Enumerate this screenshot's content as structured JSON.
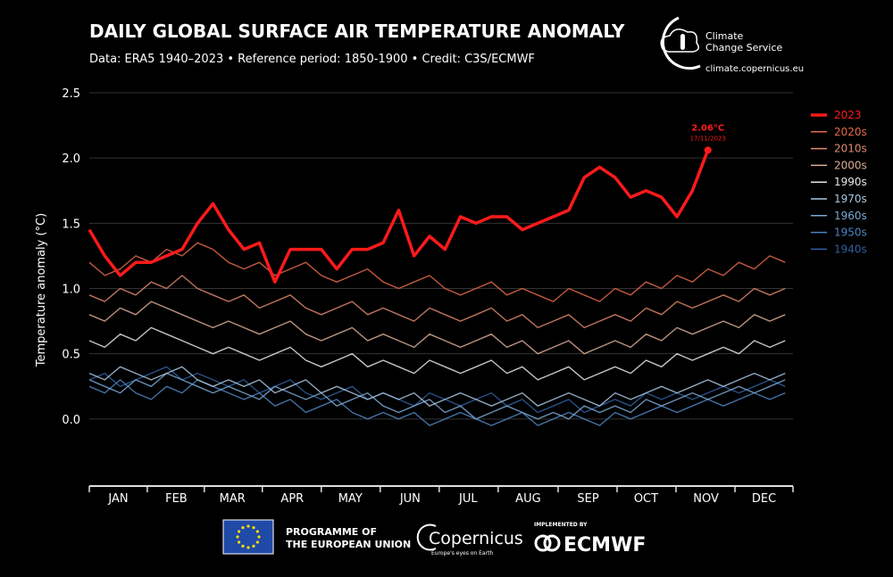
{
  "header": {
    "title": "DAILY GLOBAL SURFACE AIR TEMPERATURE ANOMALY",
    "subtitle": "Data: ERA5 1940–2023 • Reference period: 1850-1900 • Credit: C3S/ECMWF",
    "logo_line1": "Climate",
    "logo_line2": "Change Service",
    "url": "climate.copernicus.eu"
  },
  "footer": {
    "eu_line1": "PROGRAMME OF",
    "eu_line2": "THE EUROPEAN UNION",
    "copernicus": "Copernicus",
    "copernicus_tagline": "Europe's eyes on Earth",
    "implemented_by": "IMPLEMENTED BY",
    "ecmwf": "ECMWF"
  },
  "chart_data": {
    "type": "line",
    "y_label": "Temperature anomaly (°C)",
    "ylim": [
      -0.5,
      2.5
    ],
    "yticks": [
      2.5,
      {
        "value": 2,
        "label": "2.0"
      },
      1.5,
      {
        "value": 1,
        "label": "1.0"
      },
      0.5,
      {
        "value": 0,
        "label": "0.0"
      }
    ],
    "grid": true,
    "xlim": [
      1,
      365
    ],
    "xticks": [
      {
        "value": 16,
        "label": "JAN"
      },
      {
        "value": 46,
        "label": "FEB"
      },
      {
        "value": 75,
        "label": "MAR"
      },
      {
        "value": 106,
        "label": "APR"
      },
      {
        "value": 136,
        "label": "MAY"
      },
      {
        "value": 167,
        "label": "JUN"
      },
      {
        "value": 197,
        "label": "JUL"
      },
      {
        "value": 228,
        "label": "AUG"
      },
      {
        "value": 259,
        "label": "SEP"
      },
      {
        "value": 289,
        "label": "OCT"
      },
      {
        "value": 320,
        "label": "NOV"
      },
      {
        "value": 350,
        "label": "DEC"
      }
    ],
    "x": [
      1,
      9,
      17,
      25,
      33,
      41,
      49,
      57,
      65,
      73,
      81,
      89,
      97,
      105,
      113,
      121,
      129,
      137,
      145,
      153,
      161,
      169,
      177,
      185,
      193,
      201,
      209,
      217,
      225,
      233,
      241,
      249,
      257,
      265,
      273,
      281,
      289,
      297,
      305,
      313,
      321,
      329,
      337,
      345,
      353,
      361
    ],
    "legend": "right",
    "date_label": "17/11/2023",
    "series": [
      {
        "name": "2023",
        "color": "#ff1a1a",
        "values": [
          1.45,
          1.25,
          1.1,
          1.2,
          1.2,
          1.25,
          1.3,
          1.5,
          1.65,
          1.45,
          1.3,
          1.35,
          1.05,
          1.3,
          1.3,
          1.3,
          1.15,
          1.3,
          1.3,
          1.35,
          1.6,
          1.25,
          1.4,
          1.3,
          1.55,
          1.5,
          1.55,
          1.55,
          1.45,
          1.5,
          1.55,
          1.6,
          1.85,
          1.93,
          1.85,
          1.7,
          1.75,
          1.7,
          1.55,
          1.75,
          2.06,
          null,
          null,
          null,
          null,
          null
        ],
        "value_labels": [
          null,
          null,
          null,
          null,
          null,
          null,
          null,
          null,
          null,
          null,
          null,
          null,
          null,
          null,
          null,
          null,
          null,
          null,
          null,
          null,
          null,
          null,
          null,
          null,
          null,
          null,
          null,
          null,
          null,
          null,
          null,
          null,
          null,
          null,
          null,
          null,
          null,
          null,
          null,
          null,
          "2.06°C",
          null,
          null,
          null,
          null,
          null
        ]
      },
      {
        "name": "2020s",
        "color": "#e4694a",
        "values": [
          1.2,
          1.1,
          1.15,
          1.25,
          1.2,
          1.3,
          1.25,
          1.35,
          1.3,
          1.2,
          1.15,
          1.2,
          1.1,
          1.15,
          1.2,
          1.1,
          1.05,
          1.1,
          1.15,
          1.05,
          1.0,
          1.05,
          1.1,
          1.0,
          0.95,
          1.0,
          1.05,
          0.95,
          1.0,
          0.95,
          0.9,
          1.0,
          0.95,
          0.9,
          1.0,
          0.95,
          1.05,
          1.0,
          1.1,
          1.05,
          1.15,
          1.1,
          1.2,
          1.15,
          1.25,
          1.2
        ]
      },
      {
        "name": "2010s",
        "color": "#e08a6c",
        "values": [
          0.95,
          0.9,
          1.0,
          0.95,
          1.05,
          1.0,
          1.1,
          1.0,
          0.95,
          0.9,
          0.95,
          0.85,
          0.9,
          0.95,
          0.85,
          0.8,
          0.85,
          0.9,
          0.8,
          0.85,
          0.8,
          0.75,
          0.85,
          0.8,
          0.75,
          0.8,
          0.85,
          0.75,
          0.8,
          0.7,
          0.75,
          0.8,
          0.7,
          0.75,
          0.8,
          0.75,
          0.85,
          0.8,
          0.9,
          0.85,
          0.9,
          0.95,
          0.9,
          1.0,
          0.95,
          1.0
        ]
      },
      {
        "name": "2000s",
        "color": "#dcae98",
        "values": [
          0.8,
          0.75,
          0.85,
          0.8,
          0.9,
          0.85,
          0.8,
          0.75,
          0.7,
          0.75,
          0.7,
          0.65,
          0.7,
          0.75,
          0.65,
          0.6,
          0.65,
          0.7,
          0.6,
          0.65,
          0.6,
          0.55,
          0.65,
          0.6,
          0.55,
          0.6,
          0.65,
          0.55,
          0.6,
          0.5,
          0.55,
          0.6,
          0.5,
          0.55,
          0.6,
          0.55,
          0.65,
          0.6,
          0.7,
          0.65,
          0.7,
          0.75,
          0.7,
          0.8,
          0.75,
          0.8
        ]
      },
      {
        "name": "1990s",
        "color": "#e6e6e6",
        "values": [
          0.6,
          0.55,
          0.65,
          0.6,
          0.7,
          0.65,
          0.6,
          0.55,
          0.5,
          0.55,
          0.5,
          0.45,
          0.5,
          0.55,
          0.45,
          0.4,
          0.45,
          0.5,
          0.4,
          0.45,
          0.4,
          0.35,
          0.45,
          0.4,
          0.35,
          0.4,
          0.45,
          0.35,
          0.4,
          0.3,
          0.35,
          0.4,
          0.3,
          0.35,
          0.4,
          0.35,
          0.45,
          0.4,
          0.5,
          0.45,
          0.5,
          0.55,
          0.5,
          0.6,
          0.55,
          0.6
        ]
      },
      {
        "name": "1970s",
        "color": "#a9c6df",
        "values": [
          0.35,
          0.3,
          0.4,
          0.35,
          0.3,
          0.35,
          0.4,
          0.3,
          0.25,
          0.3,
          0.25,
          0.3,
          0.2,
          0.25,
          0.3,
          0.2,
          0.25,
          0.2,
          0.15,
          0.2,
          0.15,
          0.2,
          0.1,
          0.15,
          0.2,
          0.15,
          0.1,
          0.15,
          0.2,
          0.1,
          0.15,
          0.2,
          0.15,
          0.1,
          0.2,
          0.15,
          0.2,
          0.25,
          0.2,
          0.25,
          0.3,
          0.25,
          0.3,
          0.35,
          0.3,
          0.35
        ]
      },
      {
        "name": "1960s",
        "color": "#7ba7d1",
        "values": [
          0.3,
          0.25,
          0.2,
          0.3,
          0.25,
          0.35,
          0.3,
          0.25,
          0.2,
          0.25,
          0.2,
          0.15,
          0.25,
          0.2,
          0.15,
          0.2,
          0.1,
          0.15,
          0.2,
          0.1,
          0.05,
          0.1,
          0.15,
          0.05,
          0.1,
          0.0,
          0.05,
          0.1,
          0.05,
          0.0,
          0.05,
          0.0,
          0.1,
          0.05,
          0.1,
          0.05,
          0.15,
          0.1,
          0.15,
          0.2,
          0.15,
          0.2,
          0.25,
          0.2,
          0.25,
          0.3
        ]
      },
      {
        "name": "1950s",
        "color": "#4d85c2",
        "values": [
          0.25,
          0.2,
          0.3,
          0.2,
          0.15,
          0.25,
          0.2,
          0.3,
          0.25,
          0.2,
          0.15,
          0.2,
          0.1,
          0.15,
          0.05,
          0.1,
          0.15,
          0.05,
          0.0,
          0.05,
          0.0,
          0.05,
          -0.05,
          0.0,
          0.05,
          0.0,
          -0.05,
          0.0,
          0.05,
          -0.05,
          0.0,
          0.05,
          0.0,
          -0.05,
          0.05,
          0.0,
          0.05,
          0.1,
          0.05,
          0.1,
          0.15,
          0.1,
          0.15,
          0.2,
          0.15,
          0.2
        ]
      },
      {
        "name": "1940s",
        "color": "#2f5f9e",
        "values": [
          0.3,
          0.35,
          0.25,
          0.3,
          0.35,
          0.4,
          0.3,
          0.35,
          0.3,
          0.25,
          0.3,
          0.2,
          0.25,
          0.3,
          0.2,
          0.15,
          0.2,
          0.25,
          0.15,
          0.2,
          0.15,
          0.1,
          0.2,
          0.15,
          0.1,
          0.15,
          0.2,
          0.1,
          0.15,
          0.05,
          0.1,
          0.15,
          0.05,
          0.1,
          0.15,
          0.1,
          0.2,
          0.15,
          0.2,
          0.15,
          0.2,
          0.25,
          0.2,
          0.25,
          0.3,
          0.25
        ]
      }
    ]
  }
}
